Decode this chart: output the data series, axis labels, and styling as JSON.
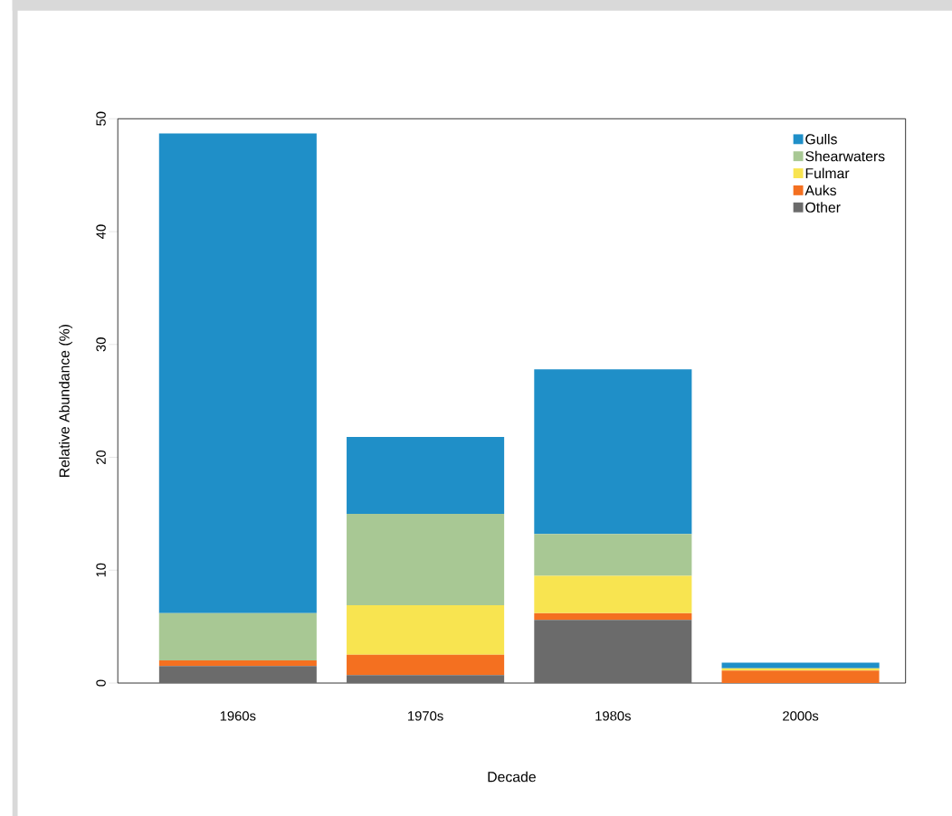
{
  "chart_data": {
    "type": "bar",
    "stacked": true,
    "xlabel": "Decade",
    "ylabel": "Relative Abundance (%)",
    "categories": [
      "1960s",
      "1970s",
      "1980s",
      "2000s"
    ],
    "ylim": [
      0,
      50
    ],
    "yticks": [
      0,
      10,
      20,
      30,
      40,
      50
    ],
    "legend": "top right",
    "series": [
      {
        "name": "Other",
        "color": "#6b6b6b",
        "values": [
          1.5,
          0.7,
          5.6,
          0
        ]
      },
      {
        "name": "Auks",
        "color": "#f47020",
        "values": [
          0.5,
          1.8,
          0.6,
          1.1
        ]
      },
      {
        "name": "Fulmar",
        "color": "#f8e450",
        "values": [
          0,
          4.4,
          3.3,
          0.2
        ]
      },
      {
        "name": "Shearwaters",
        "color": "#a8c894",
        "values": [
          4.2,
          8.1,
          3.7,
          0
        ]
      },
      {
        "name": "Gulls",
        "color": "#1f8fc8",
        "values": [
          42.5,
          6.8,
          14.6,
          0.5
        ]
      }
    ]
  }
}
